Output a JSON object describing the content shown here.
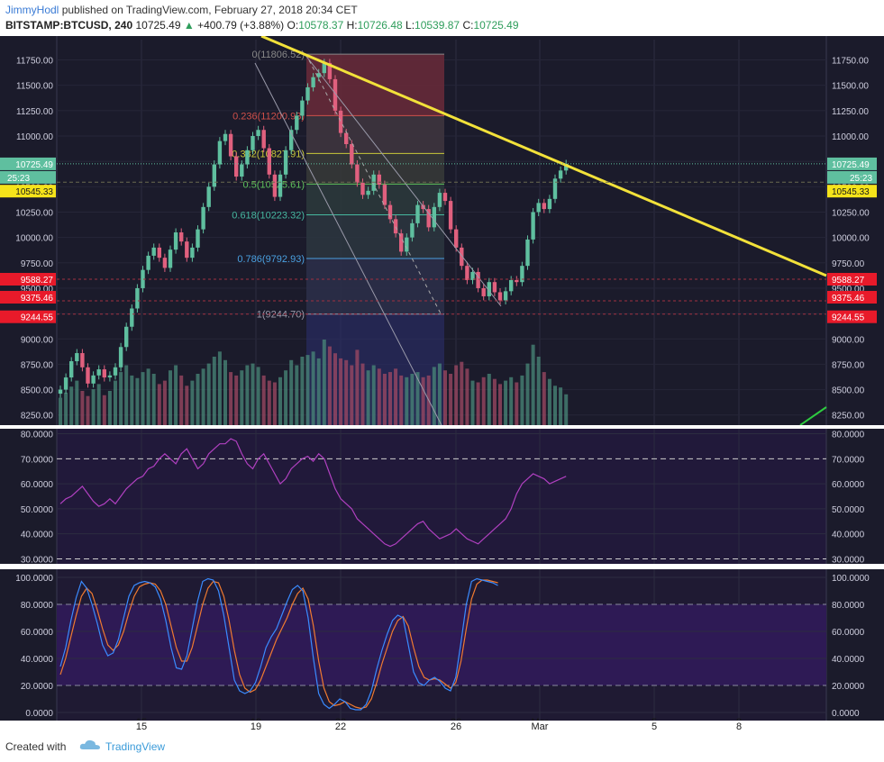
{
  "header": {
    "author": "JimmyHodl",
    "published_text": "published on TradingView.com, February 27, 2018 20:34 CET",
    "symbol": "BITSTAMP:BTCUSD, 240",
    "last": "10725.49",
    "change": "+400.79 (+3.88%)",
    "o_label": "O:",
    "o_value": "10578.37",
    "h_label": "H:",
    "h_value": "10726.48",
    "l_label": "L:",
    "l_value": "10539.87",
    "c_label": "C:",
    "c_value": "10725.49"
  },
  "footer": {
    "created_with": "Created with",
    "brand": "TradingView"
  },
  "colors": {
    "background": "#1b1b2b",
    "up": "#5fbf9f",
    "down": "#e0607e",
    "trendline": "#f2e13a",
    "rsi": "#b040c0",
    "stoch_k": "#3a8bff",
    "stoch_d": "#f07a30"
  },
  "chart_data": [
    {
      "type": "candlestick",
      "name": "price",
      "x_ticks": [
        "15",
        "19",
        "22",
        "26",
        "Mar",
        "5",
        "8"
      ],
      "y_ticks": [
        "8250.00",
        "8500.00",
        "8750.00",
        "9000.00",
        "9250.00",
        "9500.00",
        "9750.00",
        "10000.00",
        "10250.00",
        "10500.00",
        "10750.00",
        "11000.00",
        "11250.00",
        "11500.00",
        "11750.00"
      ],
      "ylim": [
        8150,
        11950
      ],
      "closes": [
        8500,
        8620,
        8780,
        8860,
        8720,
        8560,
        8640,
        8700,
        8620,
        8640,
        8720,
        8920,
        9120,
        9300,
        9500,
        9680,
        9820,
        9900,
        9800,
        9700,
        9880,
        10050,
        9960,
        9800,
        9900,
        10080,
        10300,
        10500,
        10720,
        10950,
        11020,
        10800,
        10600,
        10720,
        10860,
        11000,
        11060,
        10880,
        10620,
        10400,
        10620,
        10860,
        11060,
        11200,
        11350,
        11480,
        11580,
        11620,
        11720,
        11560,
        11250,
        11030,
        10920,
        10720,
        10540,
        10420,
        10460,
        10620,
        10520,
        10320,
        10180,
        10040,
        9860,
        10000,
        10140,
        10320,
        10280,
        10100,
        10300,
        10440,
        10360,
        10080,
        9900,
        9720,
        9580,
        9660,
        9500,
        9420,
        9560,
        9460,
        9380,
        9470,
        9580,
        9560,
        9720,
        9980,
        10250,
        10340,
        10280,
        10380,
        10580,
        10660,
        10725
      ],
      "volume_relative": [
        0.32,
        0.38,
        0.45,
        0.52,
        0.4,
        0.34,
        0.42,
        0.48,
        0.35,
        0.4,
        0.52,
        0.62,
        0.7,
        0.58,
        0.55,
        0.62,
        0.66,
        0.6,
        0.48,
        0.52,
        0.64,
        0.7,
        0.58,
        0.46,
        0.52,
        0.6,
        0.66,
        0.72,
        0.8,
        0.86,
        0.76,
        0.62,
        0.58,
        0.64,
        0.7,
        0.72,
        0.68,
        0.58,
        0.52,
        0.5,
        0.56,
        0.64,
        0.76,
        0.7,
        0.8,
        0.82,
        0.86,
        0.78,
        1.0,
        0.92,
        0.84,
        0.78,
        0.76,
        0.7,
        0.88,
        0.72,
        0.64,
        0.7,
        0.66,
        0.6,
        0.62,
        0.66,
        0.58,
        0.56,
        0.6,
        0.62,
        0.56,
        0.58,
        0.68,
        0.72,
        0.64,
        0.6,
        0.7,
        0.74,
        0.66,
        0.52,
        0.5,
        0.56,
        0.6,
        0.54,
        0.48,
        0.52,
        0.56,
        0.5,
        0.58,
        0.72,
        0.94,
        0.8,
        0.62,
        0.54,
        0.46,
        0.44,
        0.36
      ],
      "price_labels": {
        "last": "10725.49",
        "countdown": "25:23",
        "level_a": "10545.33",
        "level_b": "9588.27",
        "level_c": "9375.46",
        "level_d": "9244.55"
      },
      "fib_levels": [
        {
          "label": "0(11806.52)",
          "price": 11806.52,
          "color": "#888888"
        },
        {
          "label": "0.236(11200.93)",
          "price": 11200.93,
          "color": "#d0504a"
        },
        {
          "label": "0.382(10827.91)",
          "price": 10827.91,
          "color": "#c8c83a"
        },
        {
          "label": "0.5(10525.61)",
          "price": 10525.61,
          "color": "#5cc05a"
        },
        {
          "label": "0.618(10223.32)",
          "price": 10223.32,
          "color": "#46b8a0"
        },
        {
          "label": "0.786(9792.93)",
          "price": 9792.93,
          "color": "#4aa0e0"
        },
        {
          "label": "1(9244.70)",
          "price": 9244.7,
          "color": "#9a9aaa"
        }
      ]
    },
    {
      "type": "line",
      "name": "rsi",
      "y_ticks": [
        "30.0000",
        "40.0000",
        "50.0000",
        "60.0000",
        "70.0000",
        "80.0000"
      ],
      "ylim": [
        28,
        82
      ],
      "values": [
        52,
        54,
        55,
        57,
        59,
        56,
        53,
        51,
        52,
        54,
        52,
        55,
        58,
        60,
        62,
        63,
        66,
        67,
        70,
        72,
        70,
        68,
        72,
        74,
        70,
        66,
        68,
        72,
        74,
        76,
        76,
        78,
        77,
        72,
        68,
        66,
        70,
        72,
        68,
        64,
        60,
        62,
        66,
        68,
        70,
        71,
        69,
        72,
        70,
        64,
        58,
        54,
        52,
        50,
        46,
        44,
        42,
        40,
        38,
        36,
        35,
        36,
        38,
        40,
        42,
        44,
        45,
        42,
        40,
        38,
        39,
        40,
        42,
        40,
        38,
        37,
        36,
        38,
        40,
        42,
        44,
        46,
        50,
        56,
        60,
        62,
        64,
        63,
        62,
        60,
        61,
        62,
        63
      ]
    },
    {
      "type": "line",
      "name": "stochastic",
      "y_ticks": [
        "0.0000",
        "20.0000",
        "40.0000",
        "60.0000",
        "80.0000",
        "100.0000"
      ],
      "ylim": [
        -6,
        106
      ],
      "series": [
        {
          "values": [
            34,
            48,
            68,
            85,
            97,
            92,
            80,
            66,
            50,
            42,
            44,
            54,
            70,
            86,
            94,
            96,
            97,
            96,
            93,
            84,
            68,
            48,
            33,
            32,
            42,
            62,
            82,
            97,
            99,
            98,
            90,
            72,
            48,
            24,
            16,
            14,
            16,
            22,
            34,
            48,
            56,
            62,
            72,
            82,
            91,
            94,
            90,
            70,
            40,
            14,
            6,
            3,
            6,
            10,
            8,
            3,
            2,
            2,
            6,
            16,
            32,
            46,
            58,
            68,
            72,
            70,
            50,
            30,
            22,
            20,
            24,
            26,
            23,
            18,
            16,
            26,
            52,
            80,
            97,
            99,
            98,
            97,
            96,
            94
          ]
        },
        {
          "values": [
            28,
            40,
            56,
            72,
            86,
            92,
            88,
            76,
            62,
            50,
            46,
            50,
            60,
            74,
            86,
            93,
            95,
            96,
            95,
            90,
            80,
            64,
            48,
            38,
            38,
            48,
            64,
            80,
            92,
            97,
            96,
            86,
            68,
            46,
            28,
            18,
            15,
            17,
            24,
            34,
            44,
            54,
            62,
            70,
            80,
            88,
            92,
            84,
            64,
            38,
            18,
            8,
            5,
            6,
            8,
            6,
            4,
            3,
            4,
            10,
            22,
            36,
            48,
            60,
            68,
            71,
            64,
            48,
            34,
            26,
            24,
            25,
            24,
            21,
            18,
            22,
            38,
            62,
            84,
            95,
            98,
            98,
            97,
            96
          ]
        }
      ]
    }
  ]
}
